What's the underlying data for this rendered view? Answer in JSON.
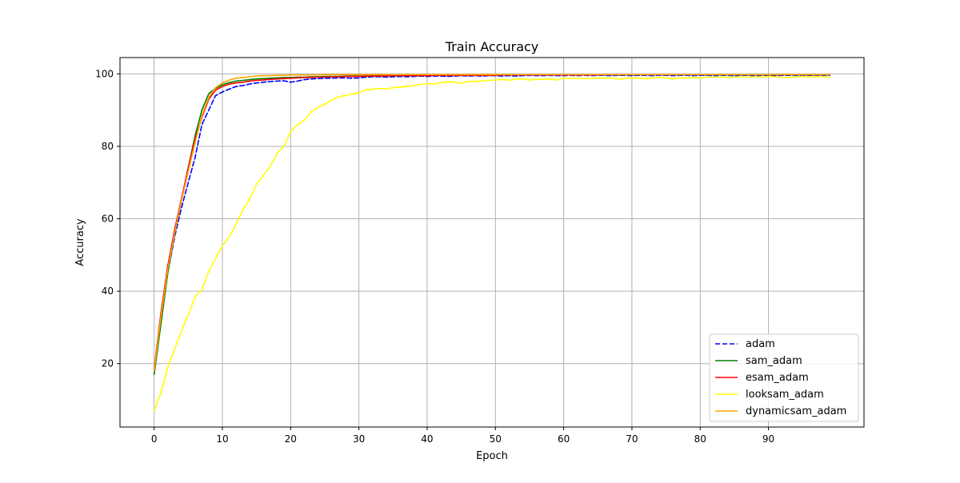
{
  "chart_data": {
    "type": "line",
    "title": "Train Accuracy",
    "xlabel": "Epoch",
    "ylabel": "Accuracy",
    "xlim": [
      -5,
      104
    ],
    "ylim": [
      2.5,
      104.5
    ],
    "xticks": [
      0,
      10,
      20,
      30,
      40,
      50,
      60,
      70,
      80,
      90
    ],
    "yticks": [
      20,
      40,
      60,
      80,
      100
    ],
    "grid": true,
    "legend_position": "lower-right",
    "series": [
      {
        "name": "adam",
        "color": "#0000ff",
        "dashed": true,
        "x": [
          0,
          1,
          2,
          3,
          4,
          5,
          6,
          7,
          8,
          9,
          10,
          11,
          12,
          13,
          14,
          15,
          16,
          17,
          18,
          19,
          20,
          21,
          22,
          23,
          24,
          25,
          26,
          27,
          28,
          29,
          30,
          31,
          32,
          33,
          34,
          35,
          36,
          37,
          38,
          39,
          40,
          41,
          42,
          43,
          44,
          45,
          46,
          47,
          48,
          49,
          50,
          51,
          52,
          53,
          54,
          55,
          56,
          57,
          58,
          59,
          60,
          61,
          62,
          63,
          64,
          65,
          66,
          67,
          68,
          69,
          70,
          71,
          72,
          73,
          74,
          75,
          76,
          77,
          78,
          79,
          80,
          81,
          82,
          83,
          84,
          85,
          86,
          87,
          88,
          89,
          90,
          91,
          92,
          93,
          94,
          95,
          96,
          97,
          98,
          99
        ],
        "y": [
          18,
          32,
          45,
          55,
          63,
          70,
          77,
          86,
          90,
          94,
          95,
          95.8,
          96.5,
          96.8,
          97.2,
          97.5,
          97.7,
          97.9,
          98,
          98.1,
          97.7,
          98,
          98.4,
          98.6,
          98.7,
          98.8,
          98.8,
          98.9,
          98.9,
          98.8,
          98.9,
          99.1,
          99.2,
          99.2,
          99.1,
          99.2,
          99.3,
          99.2,
          99.3,
          99.4,
          99.3,
          99.4,
          99.4,
          99.3,
          99.4,
          99.5,
          99.4,
          99.5,
          99.4,
          99.5,
          99.5,
          99.4,
          99.5,
          99.4,
          99.5,
          99.6,
          99.5,
          99.5,
          99.6,
          99.5,
          99.5,
          99.6,
          99.5,
          99.6,
          99.5,
          99.6,
          99.6,
          99.5,
          99.6,
          99.6,
          99.5,
          99.6,
          99.6,
          99.5,
          99.6,
          99.6,
          99.5,
          99.6,
          99.6,
          99.5,
          99.6,
          99.6,
          99.5,
          99.6,
          99.6,
          99.5,
          99.6,
          99.6,
          99.5,
          99.6,
          99.6,
          99.5,
          99.6,
          99.6,
          99.6,
          99.5,
          99.6,
          99.6,
          99.6,
          99.6
        ]
      },
      {
        "name": "sam_adam",
        "color": "#008000",
        "dashed": false,
        "x": [
          0,
          1,
          2,
          3,
          4,
          5,
          6,
          7,
          8,
          9,
          10,
          11,
          12,
          13,
          14,
          15,
          16,
          17,
          18,
          19,
          20,
          21,
          22,
          23,
          24,
          25,
          26,
          27,
          28,
          29,
          30,
          31,
          32,
          33,
          34,
          35,
          36,
          37,
          38,
          39,
          40,
          41,
          42,
          43,
          44,
          45,
          46,
          47,
          48,
          49,
          50,
          51,
          52,
          53,
          54,
          55,
          56,
          57,
          58,
          59,
          60,
          61,
          62,
          63,
          64,
          65,
          66,
          67,
          68,
          69,
          70,
          71,
          72,
          73,
          74,
          75,
          76,
          77,
          78,
          79,
          80,
          81,
          82,
          83,
          84,
          85,
          86,
          87,
          88,
          89,
          90,
          91,
          92,
          93,
          94,
          95,
          96,
          97,
          98,
          99
        ],
        "y": [
          17,
          31,
          45,
          56,
          65,
          74,
          83,
          90,
          94.5,
          96,
          97,
          97.6,
          98,
          98.2,
          98.4,
          98.6,
          98.7,
          98.8,
          98.9,
          99,
          99,
          99.1,
          99.1,
          99.2,
          99.2,
          99.3,
          99.3,
          99.3,
          99.4,
          99.4,
          99.4,
          99.4,
          99.5,
          99.5,
          99.5,
          99.5,
          99.5,
          99.5,
          99.6,
          99.6,
          99.6,
          99.6,
          99.6,
          99.6,
          99.6,
          99.6,
          99.6,
          99.7,
          99.7,
          99.7,
          99.7,
          99.7,
          99.7,
          99.7,
          99.7,
          99.7,
          99.7,
          99.7,
          99.7,
          99.7,
          99.8,
          99.8,
          99.8,
          99.8,
          99.8,
          99.8,
          99.8,
          99.8,
          99.8,
          99.8,
          99.8,
          99.8,
          99.8,
          99.8,
          99.8,
          99.8,
          99.8,
          99.8,
          99.8,
          99.8,
          99.8,
          99.8,
          99.8,
          99.8,
          99.8,
          99.8,
          99.8,
          99.8,
          99.8,
          99.8,
          99.8,
          99.8,
          99.8,
          99.8,
          99.8,
          99.8,
          99.8,
          99.8,
          99.8,
          99.8
        ]
      },
      {
        "name": "esam_adam",
        "color": "#ff0000",
        "dashed": false,
        "x": [
          0,
          1,
          2,
          3,
          4,
          5,
          6,
          7,
          8,
          9,
          10,
          11,
          12,
          13,
          14,
          15,
          16,
          17,
          18,
          19,
          20,
          21,
          22,
          23,
          24,
          25,
          26,
          27,
          28,
          29,
          30,
          31,
          32,
          33,
          34,
          35,
          36,
          37,
          38,
          39,
          40,
          41,
          42,
          43,
          44,
          45,
          46,
          47,
          48,
          49,
          50,
          51,
          52,
          53,
          54,
          55,
          56,
          57,
          58,
          59,
          60,
          61,
          62,
          63,
          64,
          65,
          66,
          67,
          68,
          69,
          70,
          71,
          72,
          73,
          74,
          75,
          76,
          77,
          78,
          79,
          80,
          81,
          82,
          83,
          84,
          85,
          86,
          87,
          88,
          89,
          90,
          91,
          92,
          93,
          94,
          95,
          96,
          97,
          98,
          99
        ],
        "y": [
          18.5,
          34,
          47,
          57,
          65.5,
          74,
          82,
          88,
          93,
          95.5,
          96.5,
          97.2,
          97.5,
          97.7,
          98,
          98.2,
          98.3,
          98.5,
          98.6,
          98.7,
          98.8,
          98.9,
          99,
          99,
          99.1,
          99.1,
          99.2,
          99.2,
          99.3,
          99.3,
          99.3,
          99.4,
          99.4,
          99.4,
          99.4,
          99.5,
          99.5,
          99.5,
          99.5,
          99.5,
          99.5,
          99.6,
          99.6,
          99.6,
          99.6,
          99.6,
          99.6,
          99.6,
          99.6,
          99.6,
          99.6,
          99.7,
          99.7,
          99.7,
          99.7,
          99.7,
          99.7,
          99.7,
          99.7,
          99.7,
          99.7,
          99.7,
          99.7,
          99.7,
          99.7,
          99.7,
          99.8,
          99.8,
          99.8,
          99.8,
          99.8,
          99.8,
          99.8,
          99.8,
          99.8,
          99.8,
          99.8,
          99.8,
          99.8,
          99.8,
          99.8,
          99.8,
          99.8,
          99.8,
          99.8,
          99.8,
          99.8,
          99.8,
          99.8,
          99.8,
          99.8,
          99.8,
          99.8,
          99.8,
          99.8,
          99.8,
          99.8,
          99.8,
          99.8,
          99.8
        ]
      },
      {
        "name": "looksam_adam",
        "color": "#ffff00",
        "dashed": false,
        "x": [
          0,
          1,
          2,
          3,
          4,
          5,
          6,
          7,
          8,
          9,
          10,
          11,
          12,
          13,
          14,
          15,
          16,
          17,
          18,
          19,
          20,
          21,
          22,
          23,
          24,
          25,
          26,
          27,
          28,
          29,
          30,
          31,
          32,
          33,
          34,
          35,
          36,
          37,
          38,
          39,
          40,
          41,
          42,
          43,
          44,
          45,
          46,
          47,
          48,
          49,
          50,
          51,
          52,
          53,
          54,
          55,
          56,
          57,
          58,
          59,
          60,
          61,
          62,
          63,
          64,
          65,
          66,
          67,
          68,
          69,
          70,
          71,
          72,
          73,
          74,
          75,
          76,
          77,
          78,
          79,
          80,
          81,
          82,
          83,
          84,
          85,
          86,
          87,
          88,
          89,
          90,
          91,
          92,
          93,
          94,
          95,
          96,
          97,
          98,
          99
        ],
        "y": [
          7,
          12,
          19,
          24,
          29,
          33.5,
          38.5,
          40.5,
          45.5,
          49,
          52.5,
          55,
          58.5,
          62.5,
          65.5,
          69.5,
          72,
          74.5,
          78,
          80,
          84,
          86,
          87.2,
          89.5,
          90.8,
          91.6,
          92.8,
          93.6,
          94,
          94.5,
          94.7,
          95.6,
          95.8,
          96,
          95.8,
          96.2,
          96.3,
          96.5,
          96.8,
          97.1,
          97.3,
          97.2,
          97.6,
          97.8,
          97.7,
          97.4,
          97.9,
          97.9,
          98,
          98.2,
          98.3,
          98.5,
          98.2,
          98.6,
          98.6,
          98.3,
          98.5,
          98.5,
          98.6,
          98.3,
          98.8,
          98.8,
          98.7,
          98.8,
          98.7,
          98.9,
          98.8,
          98.9,
          98.5,
          98.8,
          98.8,
          98.9,
          98.6,
          98.9,
          99,
          98.9,
          98.6,
          98.9,
          98.9,
          99,
          98.8,
          99.1,
          99.1,
          99.2,
          99,
          99.1,
          99.2,
          99.1,
          99.2,
          99.1,
          99.3,
          99.2,
          99.1,
          99,
          99.2,
          99.3,
          99.1,
          99.3,
          99.2,
          99
        ]
      },
      {
        "name": "dynamicsam_adam",
        "color": "#ffa500",
        "dashed": false,
        "x": [
          0,
          1,
          2,
          3,
          4,
          5,
          6,
          7,
          8,
          9,
          10,
          11,
          12,
          13,
          14,
          15,
          16,
          17,
          18,
          19,
          20,
          21,
          22,
          23,
          24,
          25,
          26,
          27,
          28,
          29,
          30,
          31,
          32,
          33,
          34,
          35,
          36,
          37,
          38,
          39,
          40,
          41,
          42,
          43,
          44,
          45,
          46,
          47,
          48,
          49,
          50,
          51,
          52,
          53,
          54,
          55,
          56,
          57,
          58,
          59,
          60,
          61,
          62,
          63,
          64,
          65,
          66,
          67,
          68,
          69,
          70,
          71,
          72,
          73,
          74,
          75,
          76,
          77,
          78,
          79,
          80,
          81,
          82,
          83,
          84,
          85,
          86,
          87,
          88,
          89,
          90,
          91,
          92,
          93,
          94,
          95,
          96,
          97,
          98,
          99
        ],
        "y": [
          18,
          33,
          46,
          56,
          65,
          73,
          81,
          88.5,
          93.5,
          96.2,
          97.5,
          98.3,
          98.8,
          99,
          99.2,
          99.4,
          99.5,
          99.5,
          99.6,
          99.6,
          99.7,
          99.7,
          99.7,
          99.7,
          99.7,
          99.8,
          99.8,
          99.8,
          99.8,
          99.8,
          99.8,
          99.8,
          99.8,
          99.8,
          99.8,
          99.8,
          99.8,
          99.8,
          99.8,
          99.8,
          99.8,
          99.8,
          99.8,
          99.8,
          99.8,
          99.8,
          99.8,
          99.8,
          99.8,
          99.8,
          99.8,
          99.8,
          99.8,
          99.8,
          99.8,
          99.8,
          99.8,
          99.8,
          99.8,
          99.8,
          99.8,
          99.8,
          99.8,
          99.8,
          99.8,
          99.8,
          99.8,
          99.8,
          99.8,
          99.8,
          99.8,
          99.8,
          99.8,
          99.8,
          99.8,
          99.8,
          99.8,
          99.8,
          99.8,
          99.8,
          99.8,
          99.8,
          99.8,
          99.8,
          99.8,
          99.8,
          99.8,
          99.8,
          99.8,
          99.8,
          99.8,
          99.8,
          99.8,
          99.8,
          99.8,
          99.8,
          99.8,
          99.8,
          99.8,
          99.8
        ]
      }
    ]
  }
}
